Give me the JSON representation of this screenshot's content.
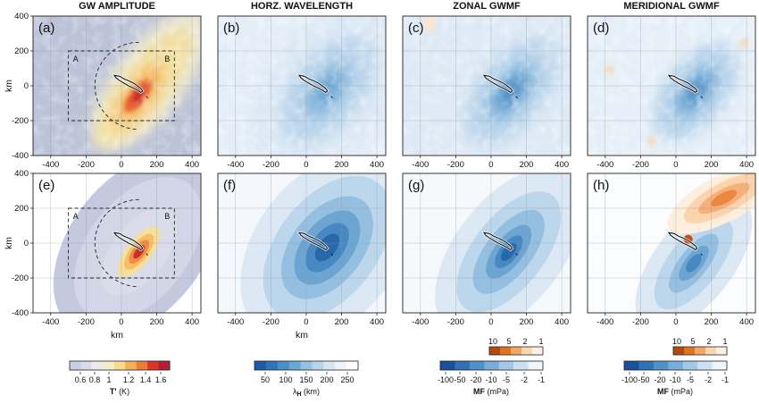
{
  "figure": {
    "columns": [
      "GW AMPLITUDE",
      "HORZ. WAVELENGTH",
      "ZONAL GWMF",
      "MERIDIONAL GWMF"
    ],
    "x_ticks": [
      "-400",
      "-200",
      "0",
      "200",
      "400"
    ],
    "y_ticks": [
      "400",
      "200",
      "0",
      "-200",
      "-400"
    ],
    "xlabel": "km",
    "ylabel": "km",
    "box_labels": [
      "A",
      "B"
    ]
  },
  "chart_data": [
    {
      "type": "heatmap",
      "panel_label": "(a)",
      "variable": "GW AMPLITUDE",
      "xlim": [
        -500,
        450
      ],
      "ylim": [
        -400,
        400
      ],
      "domain_box": {
        "x": [
          -300,
          300
        ],
        "y": [
          -200,
          200
        ],
        "labels": [
          "A",
          "B"
        ]
      },
      "arc": {
        "center": [
          100,
          0
        ],
        "radius": 250
      }
    },
    {
      "type": "heatmap",
      "panel_label": "(b)",
      "variable": "HORZ. WAVELENGTH",
      "xlim": [
        -500,
        450
      ],
      "ylim": [
        -400,
        400
      ]
    },
    {
      "type": "heatmap",
      "panel_label": "(c)",
      "variable": "ZONAL GWMF",
      "xlim": [
        -500,
        450
      ],
      "ylim": [
        -400,
        400
      ]
    },
    {
      "type": "heatmap",
      "panel_label": "(d)",
      "variable": "MERIDIONAL GWMF",
      "xlim": [
        -500,
        450
      ],
      "ylim": [
        -400,
        400
      ]
    },
    {
      "type": "heatmap",
      "panel_label": "(e)",
      "variable": "GW AMPLITUDE",
      "xlim": [
        -500,
        450
      ],
      "ylim": [
        -400,
        400
      ],
      "domain_box": {
        "x": [
          -300,
          300
        ],
        "y": [
          -200,
          200
        ],
        "labels": [
          "A",
          "B"
        ]
      },
      "arc": {
        "center": [
          100,
          0
        ],
        "radius": 250
      }
    },
    {
      "type": "heatmap",
      "panel_label": "(f)",
      "variable": "HORZ. WAVELENGTH",
      "xlim": [
        -500,
        450
      ],
      "ylim": [
        -400,
        400
      ]
    },
    {
      "type": "heatmap",
      "panel_label": "(g)",
      "variable": "ZONAL GWMF",
      "xlim": [
        -500,
        450
      ],
      "ylim": [
        -400,
        400
      ]
    },
    {
      "type": "heatmap",
      "panel_label": "(h)",
      "variable": "MERIDIONAL GWMF",
      "xlim": [
        -500,
        450
      ],
      "ylim": [
        -400,
        400
      ]
    }
  ],
  "colorbars": {
    "amplitude": {
      "ticks": [
        "0.6",
        "0.8",
        "1",
        "1.2",
        "1.4",
        "1.6"
      ],
      "title_main": "T'",
      "title_unit": " (K)",
      "colors": [
        "#c9cde6",
        "#d9dcec",
        "#ecebe9",
        "#f6eecb",
        "#f9d98d",
        "#f5b05c",
        "#ec7c3a",
        "#d9372a",
        "#b51f36"
      ]
    },
    "wavelength": {
      "ticks": [
        "50",
        "100",
        "150",
        "200",
        "250"
      ],
      "title_main": "λ",
      "title_sub": "H",
      "title_unit": " (km)",
      "colors": [
        "#1f5aa6",
        "#2f75b6",
        "#4a8fc6",
        "#6aa8d4",
        "#92c2e1",
        "#b7d5ea",
        "#d6e6f3",
        "#edf4fa",
        "#ffffff"
      ]
    },
    "mf_neg": {
      "ticks": [
        "-100",
        "-50",
        "-20",
        "-10",
        "-5",
        "-2",
        "-1"
      ],
      "title_main": "MF",
      "title_unit": " (mPa)",
      "colors": [
        "#1b4f9c",
        "#3171b6",
        "#4f91c9",
        "#78addb",
        "#a4c8e7",
        "#cde0f1",
        "#eef5fb"
      ]
    },
    "mf_pos": {
      "ticks": [
        "10",
        "5",
        "2",
        "1"
      ],
      "colors": [
        "#b34a12",
        "#e0731f",
        "#f4a765",
        "#fbd6af",
        "#fef0e2"
      ]
    }
  }
}
